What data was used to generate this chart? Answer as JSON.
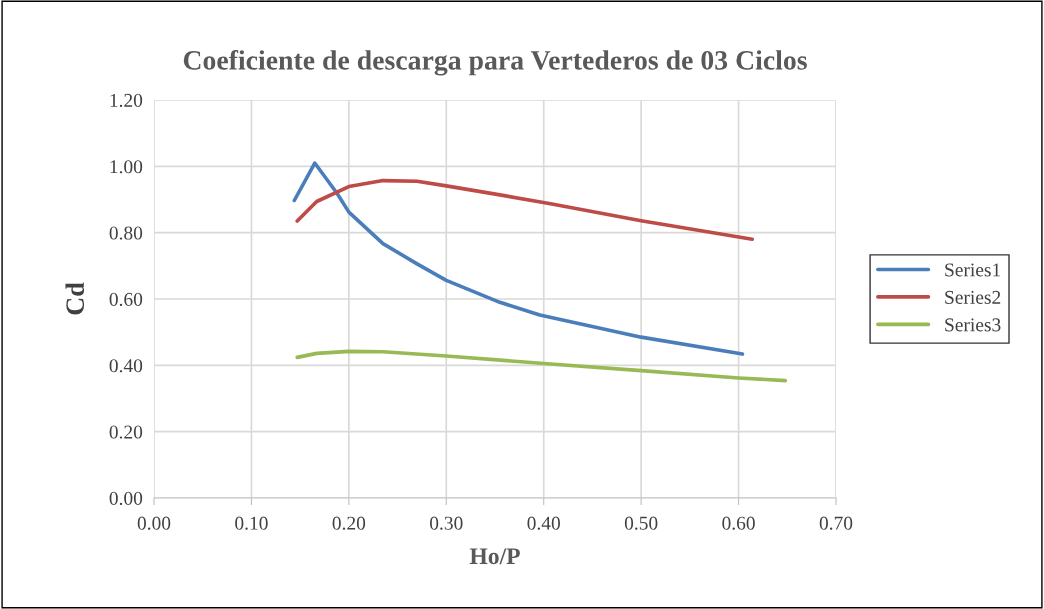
{
  "chart_data": {
    "type": "line",
    "title": "Coeficiente de descarga para Vertederos de 03 Ciclos",
    "xlabel": "Ho/P",
    "ylabel": "Cd",
    "xlim": [
      0,
      0.7
    ],
    "xticks": [
      {
        "value": 0,
        "label": "0.00"
      },
      {
        "value": 0.1,
        "label": "0.10"
      },
      {
        "value": 0.2,
        "label": "0.20"
      },
      {
        "value": 0.3,
        "label": "0.30"
      },
      {
        "value": 0.4,
        "label": "0.40"
      },
      {
        "value": 0.5,
        "label": "0.50"
      },
      {
        "value": 0.6,
        "label": "0.60"
      },
      {
        "value": 0.7,
        "label": "0.70"
      }
    ],
    "ylim": [
      0,
      1.2
    ],
    "yticks": [
      {
        "value": 0,
        "label": "0.00"
      },
      {
        "value": 0.2,
        "label": "0.20"
      },
      {
        "value": 0.4,
        "label": "0.40"
      },
      {
        "value": 0.6,
        "label": "0.60"
      },
      {
        "value": 0.8,
        "label": "0.80"
      },
      {
        "value": 1.0,
        "label": "1.00"
      },
      {
        "value": 1.2,
        "label": "1.20"
      }
    ],
    "grid": true,
    "legend": "right",
    "marker": "none",
    "line_style": "solid",
    "series": [
      {
        "name": "Series1",
        "color": "#4a7ebb",
        "x": [
          0.144,
          0.165,
          0.188,
          0.2,
          0.235,
          0.27,
          0.3,
          0.355,
          0.396,
          0.5,
          0.604
        ],
        "values": [
          0.897,
          1.01,
          0.918,
          0.862,
          0.767,
          0.706,
          0.656,
          0.59,
          0.552,
          0.485,
          0.434
        ]
      },
      {
        "name": "Series2",
        "color": "#be4b48",
        "x": [
          0.147,
          0.167,
          0.2,
          0.235,
          0.27,
          0.3,
          0.355,
          0.407,
          0.5,
          0.614
        ],
        "values": [
          0.835,
          0.894,
          0.939,
          0.957,
          0.955,
          0.941,
          0.914,
          0.887,
          0.836,
          0.78
        ]
      },
      {
        "name": "Series3",
        "color": "#98b954",
        "x": [
          0.147,
          0.167,
          0.2,
          0.235,
          0.3,
          0.407,
          0.5,
          0.6,
          0.648
        ],
        "values": [
          0.424,
          0.436,
          0.442,
          0.441,
          0.428,
          0.404,
          0.384,
          0.362,
          0.354
        ]
      }
    ]
  }
}
